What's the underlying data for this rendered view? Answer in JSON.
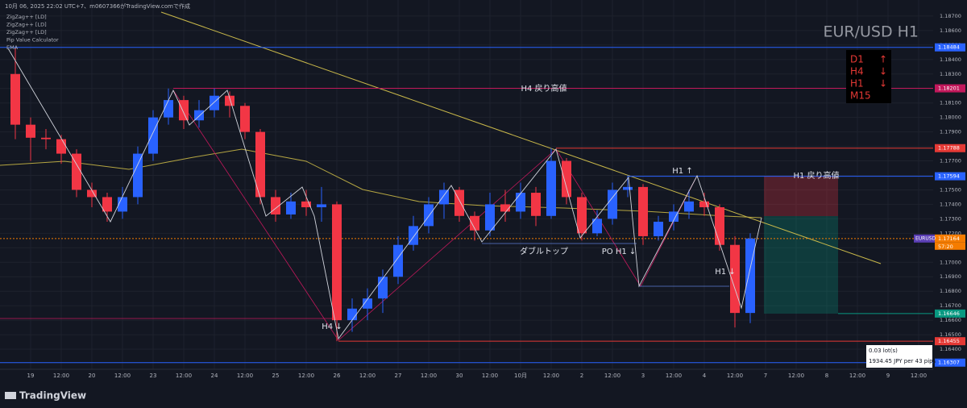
{
  "chart_data": {
    "type": "candlestick",
    "header": "10月 06, 2025 22:02 UTC+7、m0607366がTradingView.comで作成",
    "indicators": [
      "ZigZag++ [LD]",
      "ZigZag++ [LD]",
      "ZigZag++ [LD]",
      "Pip Value Calculator",
      "EMA"
    ],
    "symbol_title": "EUR/USD H1",
    "trend_box": [
      "D1",
      "↑",
      "H4",
      "↓",
      "H1",
      "↓",
      "M15"
    ],
    "symbol_badge": "EURUSD",
    "countdown": "57:20",
    "calculator": [
      "0.03 lot(s)",
      "1934.45 JPY per 43 pips"
    ],
    "brand": "TradingView",
    "up_color": "#2962ff",
    "down_color": "#f23645",
    "x": [
      null,
      "19",
      null,
      "12:00",
      null,
      "20",
      null,
      "12:00",
      null,
      "23",
      null,
      "12:00",
      null,
      "24",
      null,
      "12:00",
      null,
      "25",
      null,
      "12:00",
      null,
      "26",
      null,
      "12:00",
      null,
      "27",
      null,
      "12:00",
      null,
      "30",
      null,
      "12:00",
      null,
      "10月",
      null,
      "12:00",
      null,
      "2",
      null,
      "12:00",
      null,
      "3",
      null,
      "12:00",
      null,
      "4",
      null,
      "12:00",
      null,
      "7",
      null,
      "12:00",
      null,
      "8",
      null,
      "12:00",
      null,
      "9",
      null,
      "12:00"
    ],
    "open": [
      1.183,
      1.1795,
      1.1786,
      1.1785,
      1.1775,
      1.175,
      1.1745,
      1.1735,
      1.1745,
      1.1775,
      1.18,
      1.1812,
      1.1798,
      1.1805,
      1.1815,
      1.1808,
      1.179,
      1.1745,
      1.1733,
      1.1742,
      1.1738,
      1.174,
      1.166,
      1.1668,
      1.1675,
      1.169,
      1.1712,
      1.1725,
      1.174,
      1.175,
      1.1732,
      1.1722,
      1.174,
      1.1735,
      1.1748,
      1.1732,
      1.177,
      1.1745,
      1.172,
      1.173,
      1.175,
      1.1752,
      1.1718,
      1.1728,
      1.1735,
      1.1742,
      1.1738,
      1.1712,
      1.1665,
      null,
      null,
      null,
      null,
      null,
      null,
      null,
      null,
      null,
      null,
      null
    ],
    "high": [
      1.1848,
      1.18,
      1.1792,
      1.1788,
      1.1778,
      1.1755,
      1.1748,
      1.1752,
      1.178,
      1.1805,
      1.182,
      1.1815,
      1.1812,
      1.182,
      1.1818,
      1.181,
      1.1792,
      1.175,
      1.1748,
      1.175,
      1.1752,
      1.1742,
      1.1675,
      1.1682,
      1.1695,
      1.1718,
      1.1732,
      1.1745,
      1.1755,
      1.1752,
      1.1735,
      1.1748,
      1.175,
      1.1755,
      1.1752,
      1.17788,
      1.1772,
      1.1748,
      1.1736,
      1.1755,
      1.176,
      1.1754,
      1.1732,
      1.174,
      1.175,
      1.1748,
      1.174,
      1.1718,
      1.172,
      null,
      null,
      null,
      null,
      null,
      null,
      null,
      null,
      null,
      null,
      null
    ],
    "low": [
      1.1785,
      1.177,
      1.1778,
      1.1768,
      1.1745,
      1.1738,
      1.1728,
      1.173,
      1.174,
      1.177,
      1.1795,
      1.1792,
      1.1793,
      1.18,
      1.18,
      1.1785,
      1.174,
      1.1728,
      1.173,
      1.1732,
      1.1728,
      1.16455,
      1.1652,
      1.166,
      1.1665,
      1.1685,
      1.1708,
      1.172,
      1.173,
      1.1728,
      1.1715,
      1.1718,
      1.1728,
      1.173,
      1.1725,
      1.173,
      1.174,
      1.1715,
      1.1718,
      1.1726,
      1.1745,
      1.1712,
      1.1715,
      1.1722,
      1.173,
      1.1732,
      1.1708,
      1.1655,
      1.1658,
      null,
      null,
      null,
      null,
      null,
      null,
      null,
      null,
      null,
      null,
      null
    ],
    "close": [
      1.1795,
      1.1786,
      1.1785,
      1.1775,
      1.175,
      1.1745,
      1.1735,
      1.1745,
      1.1775,
      1.18,
      1.1812,
      1.1798,
      1.1805,
      1.1815,
      1.1808,
      1.179,
      1.1745,
      1.1733,
      1.1742,
      1.1738,
      1.174,
      1.166,
      1.1668,
      1.1675,
      1.169,
      1.1712,
      1.1725,
      1.174,
      1.175,
      1.1732,
      1.1722,
      1.174,
      1.1735,
      1.1748,
      1.1732,
      1.177,
      1.1745,
      1.172,
      1.173,
      1.175,
      1.1752,
      1.1718,
      1.1728,
      1.1735,
      1.1742,
      1.1738,
      1.1712,
      1.1665,
      1.17164,
      null,
      null,
      null,
      null,
      null,
      null,
      null,
      null,
      null,
      null,
      null
    ],
    "ylim": [
      1.16261,
      1.18811
    ],
    "yticks": [
      {
        "value": 1.164,
        "label": "1.16400"
      },
      {
        "value": 1.165,
        "label": "1.16500"
      },
      {
        "value": 1.166,
        "label": "1.16600"
      },
      {
        "value": 1.167,
        "label": "1.16700"
      },
      {
        "value": 1.168,
        "label": "1.16800"
      },
      {
        "value": 1.169,
        "label": "1.16900"
      },
      {
        "value": 1.17,
        "label": "1.17000"
      },
      {
        "value": 1.171,
        "label": "1.17100"
      },
      {
        "value": 1.172,
        "label": "1.17200"
      },
      {
        "value": 1.173,
        "label": "1.17300"
      },
      {
        "value": 1.174,
        "label": "1.17400"
      },
      {
        "value": 1.175,
        "label": "1.17500"
      },
      {
        "value": 1.176,
        "label": "1.17600"
      },
      {
        "value": 1.177,
        "label": "1.17700"
      },
      {
        "value": 1.178,
        "label": "1.17800"
      },
      {
        "value": 1.179,
        "label": "1.17900"
      },
      {
        "value": 1.18,
        "label": "1.18000"
      },
      {
        "value": 1.181,
        "label": "1.18100"
      },
      {
        "value": 1.182,
        "label": "1.18200"
      },
      {
        "value": 1.183,
        "label": "1.18300"
      },
      {
        "value": 1.184,
        "label": "1.18400"
      },
      {
        "value": 1.185,
        "label": "1.18500"
      },
      {
        "value": 1.186,
        "label": "1.18600"
      },
      {
        "value": 1.187,
        "label": "1.18700"
      }
    ],
    "levels": [
      {
        "value": 1.18484,
        "color": "#2962ff"
      },
      {
        "value": 1.18201,
        "color": "#c2185b"
      },
      {
        "value": 1.17788,
        "color": "#e53935"
      },
      {
        "value": 1.17594,
        "color": "#2962ff"
      },
      {
        "value": 1.17164,
        "color": "#f57c00"
      },
      {
        "value": 1.16646,
        "color": "#089981"
      },
      {
        "value": 1.16455,
        "color": "#e53935"
      },
      {
        "value": 1.16307,
        "color": "#2962ff"
      }
    ],
    "annotations": [
      "H4 戻り高値",
      "H1 ↑",
      "H1 戻り高値",
      "ダブルトップ",
      "PO H1 ↓",
      "H1 ↓",
      "H4 ↓"
    ]
  }
}
